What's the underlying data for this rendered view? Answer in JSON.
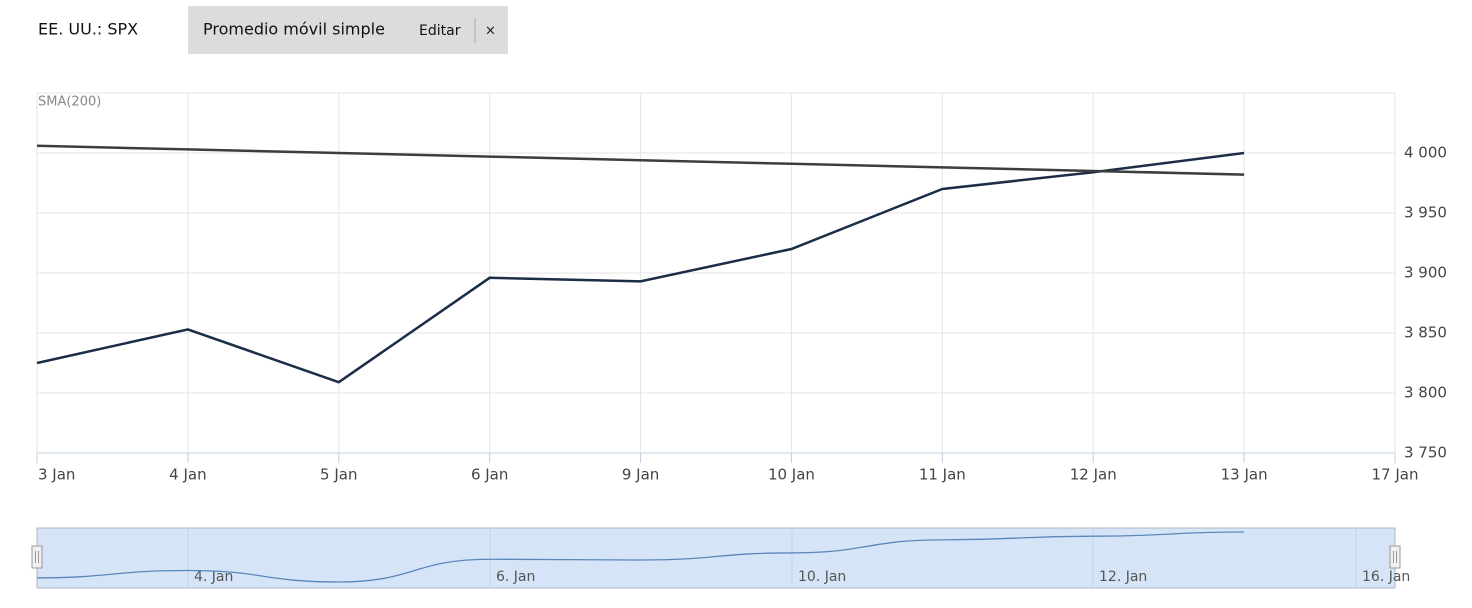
{
  "header": {
    "symbol": "EE. UU.: SPX",
    "indicator": "Promedio móvil simple",
    "edit": "Editar",
    "close": "×"
  },
  "chart_data": {
    "type": "line",
    "categories": [
      "3 Jan",
      "4 Jan",
      "5 Jan",
      "6 Jan",
      "9 Jan",
      "10 Jan",
      "11 Jan",
      "12 Jan",
      "13 Jan",
      "17 Jan"
    ],
    "series": [
      {
        "name": "EE. UU.: SPX",
        "color": "#1b2d47",
        "values": [
          3825,
          3853,
          3809,
          3896,
          3893,
          3920,
          3970,
          3984,
          4000,
          null
        ]
      },
      {
        "name": "SMA(200)",
        "color": "#3d3d3f",
        "values": [
          4006,
          4003,
          4000,
          3997,
          3994,
          3991,
          3988,
          3985,
          3982,
          null
        ]
      }
    ],
    "ylim": [
      3750,
      4050
    ],
    "yticks": [
      {
        "value": 3750,
        "label": "3 750"
      },
      {
        "value": 3800,
        "label": "3 800"
      },
      {
        "value": 3850,
        "label": "3 850"
      },
      {
        "value": 3900,
        "label": "3 900"
      },
      {
        "value": 3950,
        "label": "3 950"
      },
      {
        "value": 4000,
        "label": "4 000"
      }
    ],
    "grid": true,
    "navigator_labels": [
      "4. Jan",
      "6. Jan",
      "10. Jan",
      "12. Jan",
      "16. Jan"
    ]
  }
}
